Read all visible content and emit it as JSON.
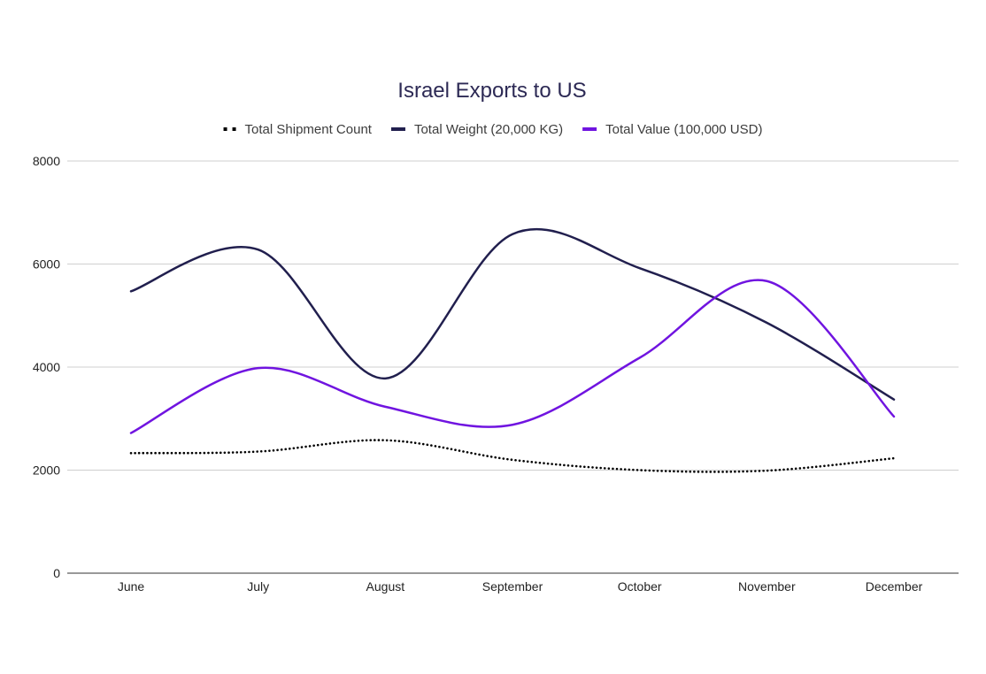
{
  "chart_data": {
    "type": "line",
    "title": "Israel Exports to US",
    "xlabel": "",
    "ylabel": "",
    "categories": [
      "June",
      "July",
      "August",
      "September",
      "October",
      "November",
      "December"
    ],
    "ylim": [
      0,
      8000
    ],
    "yticks": [
      "0",
      "2000",
      "4000",
      "6000",
      "8000"
    ],
    "grid": true,
    "legend_position": "top-center",
    "series": [
      {
        "name": "Total Shipment Count",
        "color": "#000000",
        "style": "dotted",
        "values": [
          2330,
          2360,
          2580,
          2200,
          2000,
          1990,
          2230
        ]
      },
      {
        "name": "Total Weight (20,000 KG)",
        "color": "#211f4e",
        "style": "solid",
        "values": [
          5470,
          6280,
          3780,
          6580,
          5920,
          4860,
          3370
        ]
      },
      {
        "name": "Total Value (100,000 USD)",
        "color": "#7014e0",
        "style": "solid",
        "values": [
          2720,
          3980,
          3230,
          2880,
          4180,
          5670,
          3040
        ]
      }
    ]
  }
}
